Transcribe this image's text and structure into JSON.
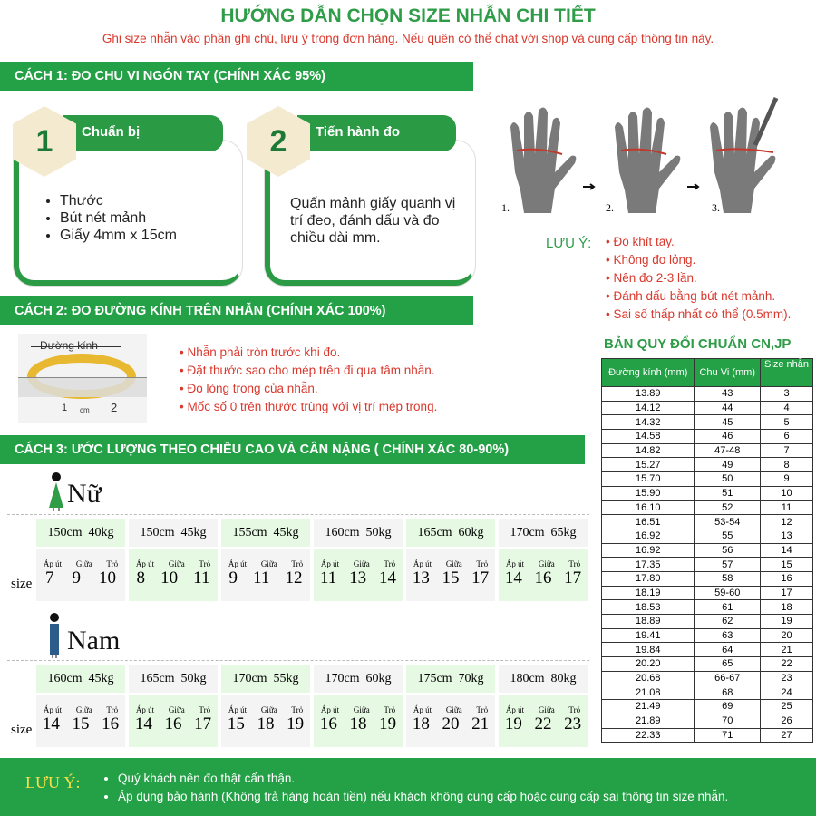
{
  "title": "HƯỚNG DẪN CHỌN SIZE NHẪN CHI TIẾT",
  "subtitle": "Ghi size nhẫn vào phần ghi chú, lưu ý trong đơn hàng. Nếu quên có thể chat với shop và cung cấp thông tin này.",
  "method1": {
    "title": "CÁCH 1: ĐO CHU VI NGÓN TAY  (CHÍNH XÁC 95%)",
    "card1": {
      "number": "1",
      "heading": "Chuẩn bị",
      "items": [
        "Thước",
        "Bút nét mảnh",
        "Giấy 4mm x 15cm"
      ]
    },
    "card2": {
      "number": "2",
      "heading": "Tiến hành đo",
      "text": "Quấn mảnh giấy quanh vị trí đeo, đánh dấu và đo chiều dài mm."
    },
    "steps": [
      "1.",
      "2.",
      "3."
    ],
    "note_label": "LƯU Ý:",
    "notes": [
      "Đo khít tay.",
      "Không đo lỏng.",
      "Nên đo 2-3 lần.",
      "Đánh dấu bằng bút nét mảnh.",
      "Sai số thấp nhất có thể (0.5mm)."
    ]
  },
  "method2": {
    "title": "CÁCH 2: ĐO ĐƯỜNG KÍNH TRÊN NHẪN (CHÍNH XÁC 100%)",
    "image_label": "Đường kính",
    "ruler_marks": [
      "1",
      "cm",
      "2"
    ],
    "notes": [
      "Nhẫn phải tròn trước khi đo.",
      "Đặt thước sao cho mép trên đi qua tâm nhẫn.",
      "Đo lòng trong của nhẫn.",
      "Mốc số 0 trên thước trùng với vị trí mép trong."
    ]
  },
  "method3": {
    "title": "CÁCH 3: ƯỚC LƯỢNG THEO CHIỀU CAO VÀ CÂN NẶNG ( CHÍNH XÁC 80-90%)",
    "size_label": "size",
    "finger_labels": [
      "Áp út",
      "Giữa",
      "Trỏ"
    ],
    "female": {
      "label": "Nữ",
      "groups": [
        {
          "h": "150cm",
          "w": "40kg",
          "sizes": [
            "7",
            "9",
            "10"
          ]
        },
        {
          "h": "150cm",
          "w": "45kg",
          "sizes": [
            "8",
            "10",
            "11"
          ]
        },
        {
          "h": "155cm",
          "w": "45kg",
          "sizes": [
            "9",
            "11",
            "12"
          ]
        },
        {
          "h": "160cm",
          "w": "50kg",
          "sizes": [
            "11",
            "13",
            "14"
          ]
        },
        {
          "h": "165cm",
          "w": "60kg",
          "sizes": [
            "13",
            "15",
            "17"
          ]
        },
        {
          "h": "170cm",
          "w": "65kg",
          "sizes": [
            "14",
            "16",
            "17"
          ]
        }
      ]
    },
    "male": {
      "label": "Nam",
      "groups": [
        {
          "h": "160cm",
          "w": "45kg",
          "sizes": [
            "14",
            "15",
            "16"
          ]
        },
        {
          "h": "165cm",
          "w": "50kg",
          "sizes": [
            "14",
            "16",
            "17"
          ]
        },
        {
          "h": "170cm",
          "w": "55kg",
          "sizes": [
            "15",
            "18",
            "19"
          ]
        },
        {
          "h": "170cm",
          "w": "60kg",
          "sizes": [
            "16",
            "18",
            "19"
          ]
        },
        {
          "h": "175cm",
          "w": "70kg",
          "sizes": [
            "18",
            "20",
            "21"
          ]
        },
        {
          "h": "180cm",
          "w": "80kg",
          "sizes": [
            "19",
            "22",
            "23"
          ]
        }
      ]
    }
  },
  "conversion": {
    "title": "BẢN QUY ĐỔI CHUẨN CN,JP",
    "headers": [
      "Đường kính (mm)",
      "Chu Vi (mm)",
      "Size nhẫn"
    ],
    "rows": [
      [
        "13.89",
        "43",
        "3"
      ],
      [
        "14.12",
        "44",
        "4"
      ],
      [
        "14.32",
        "45",
        "5"
      ],
      [
        "14.58",
        "46",
        "6"
      ],
      [
        "14.82",
        "47-48",
        "7"
      ],
      [
        "15.27",
        "49",
        "8"
      ],
      [
        "15.70",
        "50",
        "9"
      ],
      [
        "15.90",
        "51",
        "10"
      ],
      [
        "16.10",
        "52",
        "11"
      ],
      [
        "16.51",
        "53-54",
        "12"
      ],
      [
        "16.92",
        "55",
        "13"
      ],
      [
        "16.92",
        "56",
        "14"
      ],
      [
        "17.35",
        "57",
        "15"
      ],
      [
        "17.80",
        "58",
        "16"
      ],
      [
        "18.19",
        "59-60",
        "17"
      ],
      [
        "18.53",
        "61",
        "18"
      ],
      [
        "18.89",
        "62",
        "19"
      ],
      [
        "19.41",
        "63",
        "20"
      ],
      [
        "19.84",
        "64",
        "21"
      ],
      [
        "20.20",
        "65",
        "22"
      ],
      [
        "20.68",
        "66-67",
        "23"
      ],
      [
        "21.08",
        "68",
        "24"
      ],
      [
        "21.49",
        "69",
        "25"
      ],
      [
        "21.89",
        "70",
        "26"
      ],
      [
        "22.33",
        "71",
        "27"
      ]
    ]
  },
  "footer": {
    "label": "LƯU Ý:",
    "items": [
      "Quý khách nên đo thật cẩn thận.",
      "Áp dụng bảo hành (Không trả hàng hoàn tiền) nếu khách không cung cấp hoặc cung cấp sai thông tin size nhẫn."
    ]
  },
  "colors": {
    "green": "#24a146",
    "red": "#d9382d",
    "light_green": "#e6fae3"
  }
}
